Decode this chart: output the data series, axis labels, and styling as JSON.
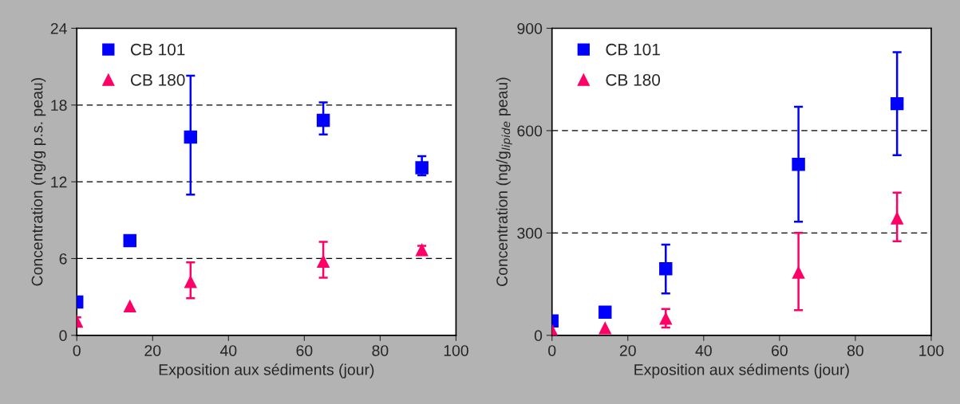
{
  "chart_data": [
    {
      "type": "scatter",
      "xlabel": "Exposition aux sédiments (jour)",
      "ylabel": "Concentration (ng/g p.s. peau)",
      "xlim": [
        0,
        100
      ],
      "xticks": [
        0,
        20,
        40,
        60,
        80,
        100
      ],
      "ylim": [
        0,
        24
      ],
      "yticks": [
        0,
        6,
        12,
        18,
        24
      ],
      "grid": "y",
      "legend": "top left",
      "series": [
        {
          "name": "CB 101",
          "color": "#0000ff",
          "marker": "square",
          "x": [
            0,
            14,
            30,
            65,
            91
          ],
          "values": [
            2.6,
            7.4,
            15.5,
            16.8,
            13.1
          ],
          "errors": [
            null,
            null,
            [
              11.0,
              20.3
            ],
            [
              15.7,
              18.2
            ],
            [
              12.5,
              14.0
            ]
          ]
        },
        {
          "name": "CB 180",
          "color": "#ff0066",
          "marker": "triangle",
          "x": [
            0,
            14,
            30,
            65,
            91
          ],
          "values": [
            1.1,
            2.3,
            4.2,
            5.8,
            6.7
          ],
          "errors": [
            [
              0.8,
              1.4
            ],
            null,
            [
              2.9,
              5.7
            ],
            [
              4.5,
              7.3
            ],
            [
              6.4,
              7.0
            ]
          ]
        }
      ]
    },
    {
      "type": "scatter",
      "xlabel": "Exposition aux sédiments (jour)",
      "ylabel": "Concentration (ng/g$_{lipide}$ peau)",
      "xlim": [
        0,
        100
      ],
      "xticks": [
        0,
        20,
        40,
        60,
        80,
        100
      ],
      "ylim": [
        0,
        900
      ],
      "yticks": [
        0,
        300,
        600,
        900
      ],
      "grid": "y",
      "legend": "top left",
      "series": [
        {
          "name": "CB 101",
          "color": "#0000ff",
          "marker": "square",
          "x": [
            0,
            14,
            30,
            65,
            91
          ],
          "values": [
            42,
            68,
            195,
            501,
            679
          ],
          "errors": [
            null,
            null,
            [
              123,
              266
            ],
            [
              333,
              670
            ],
            [
              528,
              830
            ]
          ]
        },
        {
          "name": "CB 180",
          "color": "#ff0066",
          "marker": "triangle",
          "x": [
            0,
            14,
            30,
            65,
            91
          ],
          "values": [
            15,
            22,
            50,
            185,
            344
          ],
          "errors": [
            null,
            null,
            [
              23,
              77
            ],
            [
              74,
              300
            ],
            [
              276,
              418
            ]
          ]
        }
      ]
    }
  ]
}
